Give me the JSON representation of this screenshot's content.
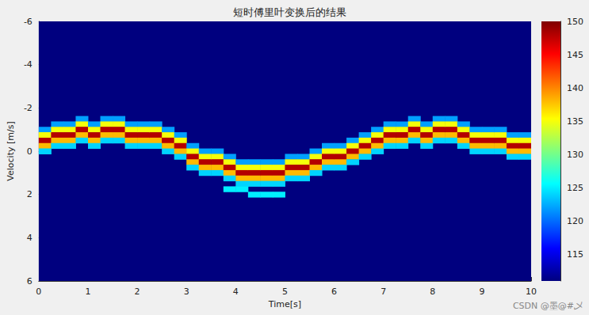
{
  "chart_data": {
    "type": "heatmap",
    "title": "短时傅里叶变换后的结果",
    "x_label": "Time[s]",
    "y_label": "Velocity [m/s]",
    "xlim": [
      0,
      10
    ],
    "xticks": [
      0,
      1,
      2,
      3,
      4,
      5,
      6,
      7,
      8,
      9,
      10
    ],
    "ylim": [
      -6,
      6
    ],
    "yticks": [
      -6,
      -4,
      -2,
      0,
      2,
      4,
      6
    ],
    "y_inverted": true,
    "grid": false,
    "clim": [
      111,
      150
    ],
    "cticks": [
      115,
      120,
      125,
      130,
      135,
      140,
      145,
      150
    ],
    "background_value": 111,
    "annotation": "CSDN @墨@#乄",
    "cells": [
      [
        0.125,
        -1,
        122
      ],
      [
        0.125,
        -0.75,
        135
      ],
      [
        0.125,
        -0.5,
        148
      ],
      [
        0.125,
        -0.25,
        138
      ],
      [
        0.125,
        0,
        124
      ],
      [
        0.375,
        -1.25,
        122
      ],
      [
        0.375,
        -1,
        135
      ],
      [
        0.375,
        -0.75,
        148
      ],
      [
        0.375,
        -0.5,
        138
      ],
      [
        0.375,
        -0.25,
        124
      ],
      [
        0.625,
        -1.25,
        122
      ],
      [
        0.625,
        -1,
        135
      ],
      [
        0.625,
        -0.75,
        148
      ],
      [
        0.625,
        -0.5,
        138
      ],
      [
        0.625,
        -0.25,
        124
      ],
      [
        0.875,
        -1.5,
        122
      ],
      [
        0.875,
        -1.25,
        135
      ],
      [
        0.875,
        -1,
        148
      ],
      [
        0.875,
        -0.75,
        138
      ],
      [
        0.875,
        -0.5,
        124
      ],
      [
        1.125,
        -1.25,
        122
      ],
      [
        1.125,
        -1,
        135
      ],
      [
        1.125,
        -0.75,
        148
      ],
      [
        1.125,
        -0.5,
        138
      ],
      [
        1.125,
        -0.25,
        124
      ],
      [
        1.375,
        -1.5,
        122
      ],
      [
        1.375,
        -1.25,
        135
      ],
      [
        1.375,
        -1,
        148
      ],
      [
        1.375,
        -0.75,
        138
      ],
      [
        1.375,
        -0.5,
        124
      ],
      [
        1.625,
        -1.5,
        122
      ],
      [
        1.625,
        -1.25,
        135
      ],
      [
        1.625,
        -1,
        148
      ],
      [
        1.625,
        -0.75,
        138
      ],
      [
        1.625,
        -0.5,
        124
      ],
      [
        1.875,
        -1.25,
        122
      ],
      [
        1.875,
        -1,
        135
      ],
      [
        1.875,
        -0.75,
        148
      ],
      [
        1.875,
        -0.5,
        138
      ],
      [
        1.875,
        -0.25,
        124
      ],
      [
        2.125,
        -1.25,
        122
      ],
      [
        2.125,
        -1,
        135
      ],
      [
        2.125,
        -0.75,
        148
      ],
      [
        2.125,
        -0.5,
        138
      ],
      [
        2.125,
        -0.25,
        124
      ],
      [
        2.375,
        -1.25,
        122
      ],
      [
        2.375,
        -1,
        135
      ],
      [
        2.375,
        -0.75,
        148
      ],
      [
        2.375,
        -0.5,
        138
      ],
      [
        2.375,
        -0.25,
        124
      ],
      [
        2.625,
        -1,
        122
      ],
      [
        2.625,
        -0.75,
        135
      ],
      [
        2.625,
        -0.5,
        148
      ],
      [
        2.625,
        -0.25,
        138
      ],
      [
        2.625,
        0,
        124
      ],
      [
        2.875,
        -0.75,
        122
      ],
      [
        2.875,
        -0.5,
        135
      ],
      [
        2.875,
        -0.25,
        148
      ],
      [
        2.875,
        0,
        138
      ],
      [
        2.875,
        0.25,
        124
      ],
      [
        3.125,
        -0.25,
        122
      ],
      [
        3.125,
        0,
        135
      ],
      [
        3.125,
        0.25,
        148
      ],
      [
        3.125,
        0.5,
        138
      ],
      [
        3.125,
        0.75,
        124
      ],
      [
        3.375,
        0,
        122
      ],
      [
        3.375,
        0.25,
        135
      ],
      [
        3.375,
        0.5,
        148
      ],
      [
        3.375,
        0.75,
        138
      ],
      [
        3.375,
        1,
        124
      ],
      [
        3.625,
        0,
        122
      ],
      [
        3.625,
        0.25,
        135
      ],
      [
        3.625,
        0.5,
        148
      ],
      [
        3.625,
        0.75,
        138
      ],
      [
        3.625,
        1,
        124
      ],
      [
        3.875,
        0.25,
        122
      ],
      [
        3.875,
        0.5,
        135
      ],
      [
        3.875,
        0.75,
        148
      ],
      [
        3.875,
        1,
        138
      ],
      [
        3.875,
        1.25,
        124
      ],
      [
        4.125,
        0.5,
        122
      ],
      [
        4.125,
        0.75,
        135
      ],
      [
        4.125,
        1,
        148
      ],
      [
        4.125,
        1.25,
        138
      ],
      [
        4.125,
        1.5,
        124
      ],
      [
        4.375,
        0.5,
        122
      ],
      [
        4.375,
        0.75,
        135
      ],
      [
        4.375,
        1,
        148
      ],
      [
        4.375,
        1.25,
        138
      ],
      [
        4.375,
        1.5,
        124
      ],
      [
        4.625,
        0.5,
        122
      ],
      [
        4.625,
        0.75,
        135
      ],
      [
        4.625,
        1,
        148
      ],
      [
        4.625,
        1.25,
        138
      ],
      [
        4.625,
        1.5,
        124
      ],
      [
        4.875,
        0.5,
        122
      ],
      [
        4.875,
        0.75,
        135
      ],
      [
        4.875,
        1,
        148
      ],
      [
        4.875,
        1.25,
        138
      ],
      [
        4.875,
        1.5,
        124
      ],
      [
        5.125,
        0.25,
        122
      ],
      [
        5.125,
        0.5,
        135
      ],
      [
        5.125,
        0.75,
        148
      ],
      [
        5.125,
        1,
        138
      ],
      [
        5.125,
        1.25,
        124
      ],
      [
        5.375,
        0.25,
        122
      ],
      [
        5.375,
        0.5,
        135
      ],
      [
        5.375,
        0.75,
        148
      ],
      [
        5.375,
        1,
        138
      ],
      [
        5.375,
        1.25,
        124
      ],
      [
        5.625,
        0,
        122
      ],
      [
        5.625,
        0.25,
        135
      ],
      [
        5.625,
        0.5,
        148
      ],
      [
        5.625,
        0.75,
        138
      ],
      [
        5.625,
        1,
        124
      ],
      [
        5.875,
        -0.25,
        122
      ],
      [
        5.875,
        0,
        135
      ],
      [
        5.875,
        0.25,
        148
      ],
      [
        5.875,
        0.5,
        138
      ],
      [
        5.875,
        0.75,
        124
      ],
      [
        6.125,
        -0.25,
        122
      ],
      [
        6.125,
        0,
        135
      ],
      [
        6.125,
        0.25,
        148
      ],
      [
        6.125,
        0.5,
        138
      ],
      [
        6.125,
        0.75,
        124
      ],
      [
        6.375,
        -0.5,
        122
      ],
      [
        6.375,
        -0.25,
        135
      ],
      [
        6.375,
        0,
        148
      ],
      [
        6.375,
        0.25,
        138
      ],
      [
        6.375,
        0.5,
        124
      ],
      [
        6.625,
        -0.75,
        122
      ],
      [
        6.625,
        -0.5,
        135
      ],
      [
        6.625,
        -0.25,
        148
      ],
      [
        6.625,
        0,
        138
      ],
      [
        6.625,
        0.25,
        124
      ],
      [
        6.875,
        -1,
        122
      ],
      [
        6.875,
        -0.75,
        135
      ],
      [
        6.875,
        -0.5,
        148
      ],
      [
        6.875,
        -0.25,
        138
      ],
      [
        6.875,
        0,
        124
      ],
      [
        7.125,
        -1.25,
        122
      ],
      [
        7.125,
        -1,
        135
      ],
      [
        7.125,
        -0.75,
        148
      ],
      [
        7.125,
        -0.5,
        138
      ],
      [
        7.125,
        -0.25,
        124
      ],
      [
        7.375,
        -1.25,
        122
      ],
      [
        7.375,
        -1,
        135
      ],
      [
        7.375,
        -0.75,
        148
      ],
      [
        7.375,
        -0.5,
        138
      ],
      [
        7.375,
        -0.25,
        124
      ],
      [
        7.625,
        -1.5,
        122
      ],
      [
        7.625,
        -1.25,
        135
      ],
      [
        7.625,
        -1,
        148
      ],
      [
        7.625,
        -0.75,
        138
      ],
      [
        7.625,
        -0.5,
        124
      ],
      [
        7.875,
        -1.25,
        122
      ],
      [
        7.875,
        -1,
        135
      ],
      [
        7.875,
        -0.75,
        148
      ],
      [
        7.875,
        -0.5,
        138
      ],
      [
        7.875,
        -0.25,
        124
      ],
      [
        8.125,
        -1.5,
        122
      ],
      [
        8.125,
        -1.25,
        135
      ],
      [
        8.125,
        -1,
        148
      ],
      [
        8.125,
        -0.75,
        138
      ],
      [
        8.125,
        -0.5,
        124
      ],
      [
        8.375,
        -1.5,
        122
      ],
      [
        8.375,
        -1.25,
        135
      ],
      [
        8.375,
        -1,
        148
      ],
      [
        8.375,
        -0.75,
        138
      ],
      [
        8.375,
        -0.5,
        124
      ],
      [
        8.625,
        -1.25,
        122
      ],
      [
        8.625,
        -1,
        135
      ],
      [
        8.625,
        -0.75,
        148
      ],
      [
        8.625,
        -0.5,
        138
      ],
      [
        8.625,
        -0.25,
        124
      ],
      [
        8.875,
        -1,
        122
      ],
      [
        8.875,
        -0.75,
        135
      ],
      [
        8.875,
        -0.5,
        148
      ],
      [
        8.875,
        -0.25,
        138
      ],
      [
        8.875,
        0,
        124
      ],
      [
        9.125,
        -1,
        122
      ],
      [
        9.125,
        -0.75,
        135
      ],
      [
        9.125,
        -0.5,
        148
      ],
      [
        9.125,
        -0.25,
        138
      ],
      [
        9.125,
        0,
        124
      ],
      [
        9.375,
        -1,
        122
      ],
      [
        9.375,
        -0.75,
        135
      ],
      [
        9.375,
        -0.5,
        148
      ],
      [
        9.375,
        -0.25,
        138
      ],
      [
        9.375,
        0,
        124
      ],
      [
        9.625,
        -0.75,
        122
      ],
      [
        9.625,
        -0.5,
        135
      ],
      [
        9.625,
        -0.25,
        148
      ],
      [
        9.625,
        0,
        138
      ],
      [
        9.625,
        0.25,
        124
      ],
      [
        9.875,
        -0.75,
        122
      ],
      [
        9.875,
        -0.5,
        135
      ],
      [
        9.875,
        -0.25,
        148
      ],
      [
        9.875,
        0,
        138
      ],
      [
        9.875,
        0.25,
        124
      ],
      [
        3.875,
        1.75,
        125
      ],
      [
        4.125,
        1.75,
        125
      ],
      [
        4.375,
        2,
        125
      ],
      [
        4.625,
        2,
        125
      ],
      [
        4.875,
        2,
        125
      ]
    ]
  }
}
